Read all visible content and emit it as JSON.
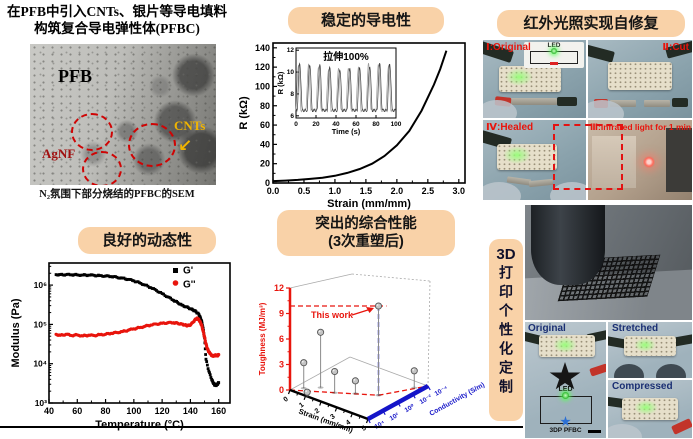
{
  "panelA": {
    "title_line1": "在PFB中引入CNTs、银片等导电填料",
    "title_line2": "构筑复合导电弹性体(PFBC)",
    "sem_labels": {
      "matrix": "PFB",
      "silver": "AgNF",
      "cnt": "CNTs"
    },
    "caption": "N₂氛围下部分烧结的PFBC的SEM"
  },
  "panelB": {
    "badge": "稳定的导电性"
  },
  "panelC": {
    "badge": "红外光照实现自修复",
    "photos": [
      {
        "label": "Ⅰ:Original"
      },
      {
        "label": "Ⅱ:Cut"
      },
      {
        "label": "Ⅳ:Healed"
      },
      {
        "label": "Ⅲ:Infrared light for 1 min"
      }
    ],
    "led_label": "LED"
  },
  "panelD": {
    "badge": "良好的动态性"
  },
  "panelE": {
    "badge_line1": "突出的综合性能",
    "badge_line2": "(3次重塑后)"
  },
  "panelF": {
    "badge_3d": "3D",
    "badge_text": "打印个性化定制",
    "photos": [
      {
        "label": "Original"
      },
      {
        "label": "Stretched"
      },
      {
        "label": "Compressed"
      }
    ],
    "circuit": {
      "led": "LED",
      "device": "3DP PFBC"
    }
  },
  "colors": {
    "badge_bg": "#f9d2a8",
    "accent_red": "#e8150d",
    "axis_blue": "#1414c8",
    "sem_agnf": "#a01010",
    "sem_cnts": "#f0b400",
    "photo_label_navy": "#1a2f73"
  },
  "chart_data": [
    {
      "id": "resistance-strain",
      "type": "line",
      "xlabel": "Strain (mm/mm)",
      "ylabel": "R (kΩ)",
      "xlim": [
        0,
        3.1
      ],
      "ylim": [
        0,
        145
      ],
      "xticks": [
        0.0,
        0.5,
        1.0,
        1.5,
        2.0,
        2.5,
        3.0
      ],
      "yticks": [
        0,
        20,
        40,
        60,
        80,
        100,
        120,
        140
      ],
      "x": [
        0,
        0.2,
        0.4,
        0.6,
        0.8,
        1.0,
        1.2,
        1.4,
        1.6,
        1.8,
        2.0,
        2.2,
        2.4,
        2.6,
        2.7,
        2.8
      ],
      "y": [
        2,
        2.5,
        3.2,
        4.2,
        5.5,
        7.5,
        10.5,
        14.5,
        20,
        28,
        39,
        54,
        75,
        102,
        118,
        137
      ]
    },
    {
      "id": "cyclic-stretch-inset",
      "type": "line",
      "title": "拉伸100%",
      "xlabel": "Time (s)",
      "ylabel": "R (kΩ)",
      "xlim": [
        0,
        100
      ],
      "ylim": [
        5.8,
        12.2
      ],
      "xticks": [
        0,
        20,
        40,
        60,
        80,
        100
      ],
      "yticks": [
        6,
        8,
        10,
        12
      ],
      "cycles": 10,
      "r_min": 6.5,
      "r_max": 10.5
    },
    {
      "id": "modulus-temperature",
      "type": "scatter",
      "xlabel": "Temperature (°C)",
      "ylabel": "Modulus (Pa)",
      "x_range": [
        40,
        168
      ],
      "y_range_log": [
        1000,
        3650000
      ],
      "xticks": [
        40,
        60,
        80,
        100,
        120,
        140,
        160
      ],
      "ytick_labels": [
        "10³",
        "10⁴",
        "10⁵",
        "10⁶"
      ],
      "legend": [
        "G'",
        "G''"
      ],
      "series": [
        {
          "name": "G'",
          "color": "#000000",
          "marker": "square",
          "points": [
            [
              45,
              1850000
            ],
            [
              48,
              1850000
            ],
            [
              52,
              1840000
            ],
            [
              56,
              1830000
            ],
            [
              60,
              1820000
            ],
            [
              64,
              1800000
            ],
            [
              68,
              1790000
            ],
            [
              72,
              1770000
            ],
            [
              76,
              1740000
            ],
            [
              80,
              1700000
            ],
            [
              84,
              1650000
            ],
            [
              88,
              1580000
            ],
            [
              92,
              1500000
            ],
            [
              96,
              1400000
            ],
            [
              100,
              1280000
            ],
            [
              104,
              1150000
            ],
            [
              108,
              1000000
            ],
            [
              112,
              860000
            ],
            [
              116,
              730000
            ],
            [
              120,
              610000
            ],
            [
              124,
              500000
            ],
            [
              128,
              410000
            ],
            [
              131,
              360000
            ],
            [
              134,
              310000
            ],
            [
              137,
              280000
            ],
            [
              140,
              250000
            ],
            [
              142,
              230000
            ],
            [
              144,
              210000
            ],
            [
              146,
              180000
            ],
            [
              147,
              150000
            ],
            [
              148,
              120000
            ],
            [
              149,
              80000
            ],
            [
              150,
              45000
            ],
            [
              151,
              13000
            ],
            [
              153,
              6500
            ],
            [
              155,
              4000
            ],
            [
              156,
              3300
            ],
            [
              157,
              2900
            ],
            [
              158,
              2800
            ],
            [
              159,
              3000
            ],
            [
              160,
              3300
            ]
          ]
        },
        {
          "name": "G''",
          "color": "#e8150d",
          "marker": "circle",
          "points": [
            [
              45,
              56000
            ],
            [
              48,
              53000
            ],
            [
              52,
              56000
            ],
            [
              56,
              52000
            ],
            [
              60,
              54000
            ],
            [
              64,
              51000
            ],
            [
              68,
              53000
            ],
            [
              72,
              52000
            ],
            [
              76,
              55000
            ],
            [
              80,
              56000
            ],
            [
              84,
              59000
            ],
            [
              88,
              62000
            ],
            [
              92,
              66000
            ],
            [
              96,
              71000
            ],
            [
              100,
              77000
            ],
            [
              104,
              83000
            ],
            [
              108,
              90000
            ],
            [
              112,
              96000
            ],
            [
              116,
              102000
            ],
            [
              120,
              107000
            ],
            [
              124,
              110000
            ],
            [
              128,
              110000
            ],
            [
              131,
              107000
            ],
            [
              134,
              102000
            ],
            [
              136,
              97000
            ],
            [
              138,
              93000
            ],
            [
              140,
              96000
            ],
            [
              142,
              115000
            ],
            [
              144,
              138000
            ],
            [
              145,
              142000
            ],
            [
              146,
              132000
            ],
            [
              147,
              115000
            ],
            [
              148,
              95000
            ],
            [
              149,
              68000
            ],
            [
              150,
              48000
            ],
            [
              151,
              32000
            ],
            [
              152,
              24000
            ],
            [
              153,
              20000
            ],
            [
              154,
              18000
            ],
            [
              155,
              16000
            ],
            [
              156,
              15500
            ],
            [
              157,
              16000
            ],
            [
              158,
              16500
            ],
            [
              159,
              16000
            ],
            [
              160,
              17000
            ]
          ]
        }
      ]
    },
    {
      "id": "performance-3d",
      "type": "scatter3d",
      "annotation": "This work",
      "axes": {
        "z": {
          "label": "Toughness (MJ/m³)",
          "ticks": [
            0,
            3,
            6,
            9,
            12
          ],
          "color": "#e8150d"
        },
        "x": {
          "label": "Strain (mm/mm)",
          "ticks": [
            0,
            1,
            2,
            3,
            4,
            5
          ],
          "color": "#000000"
        },
        "y": {
          "label": "Conductivity (S/m)",
          "tick_labels": [
            "10⁴",
            "10²",
            "10⁰",
            "10⁻²",
            "10⁻⁴"
          ],
          "color": "#1414c8"
        }
      },
      "points": [
        {
          "label": "This work",
          "strain": 3.75,
          "conductivity_exp": 0,
          "toughness": 10.5
        },
        {
          "strain": 1.0,
          "conductivity_exp": 2,
          "toughness": 6.5
        },
        {
          "strain": 0.4,
          "conductivity_exp": 3,
          "toughness": 3.0
        },
        {
          "strain": 1.9,
          "conductivity_exp": 2,
          "toughness": 2.5
        },
        {
          "strain": 4.6,
          "conductivity_exp": -3,
          "toughness": 2.0
        },
        {
          "strain": 2.75,
          "conductivity_exp": 1,
          "toughness": 1.5
        },
        {
          "strain": 1.1,
          "conductivity_exp": 4,
          "toughness": 0.5
        }
      ]
    }
  ]
}
